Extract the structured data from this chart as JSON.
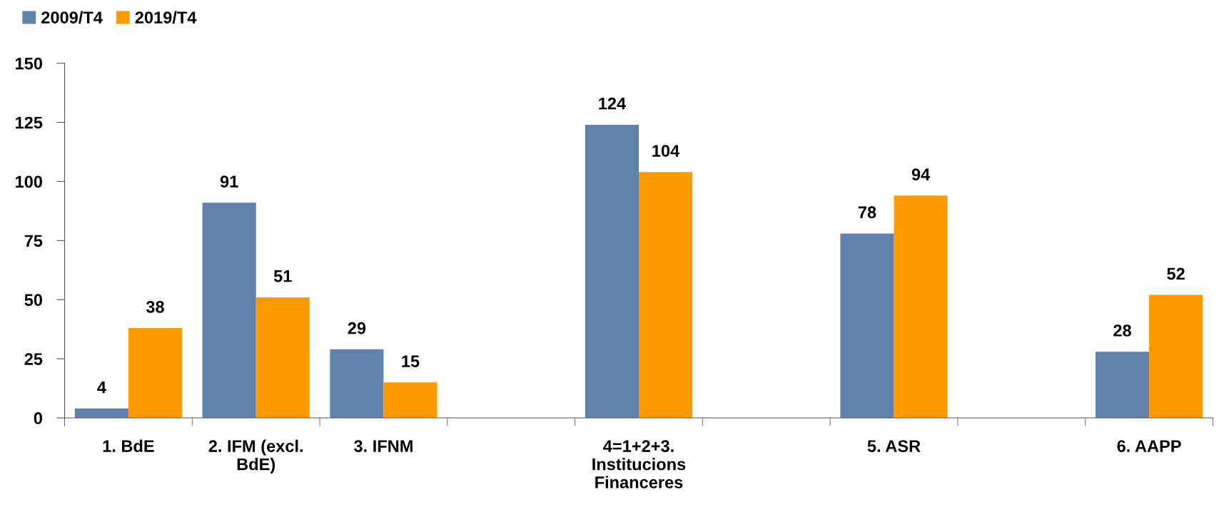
{
  "chart_data": {
    "type": "bar",
    "categories": [
      "1. BdE",
      "2. IFM (excl.\nBdE)",
      "3. IFNM",
      null,
      "4=1+2+3.\nInstitucions\nFinanceres",
      null,
      "5. ASR",
      null,
      "6. AAPP"
    ],
    "series": [
      {
        "name": "2009/T4",
        "color": "#5f81aa",
        "values": [
          4,
          91,
          29,
          null,
          124,
          null,
          78,
          null,
          28
        ]
      },
      {
        "name": "2019/T4",
        "color": "#ff9900",
        "values": [
          38,
          51,
          15,
          null,
          104,
          null,
          94,
          null,
          52
        ]
      }
    ],
    "ylim": [
      0,
      150
    ],
    "yticks": [
      0,
      25,
      50,
      75,
      100,
      125,
      150
    ],
    "data_labels": true,
    "grid": false,
    "legend": "top left"
  }
}
